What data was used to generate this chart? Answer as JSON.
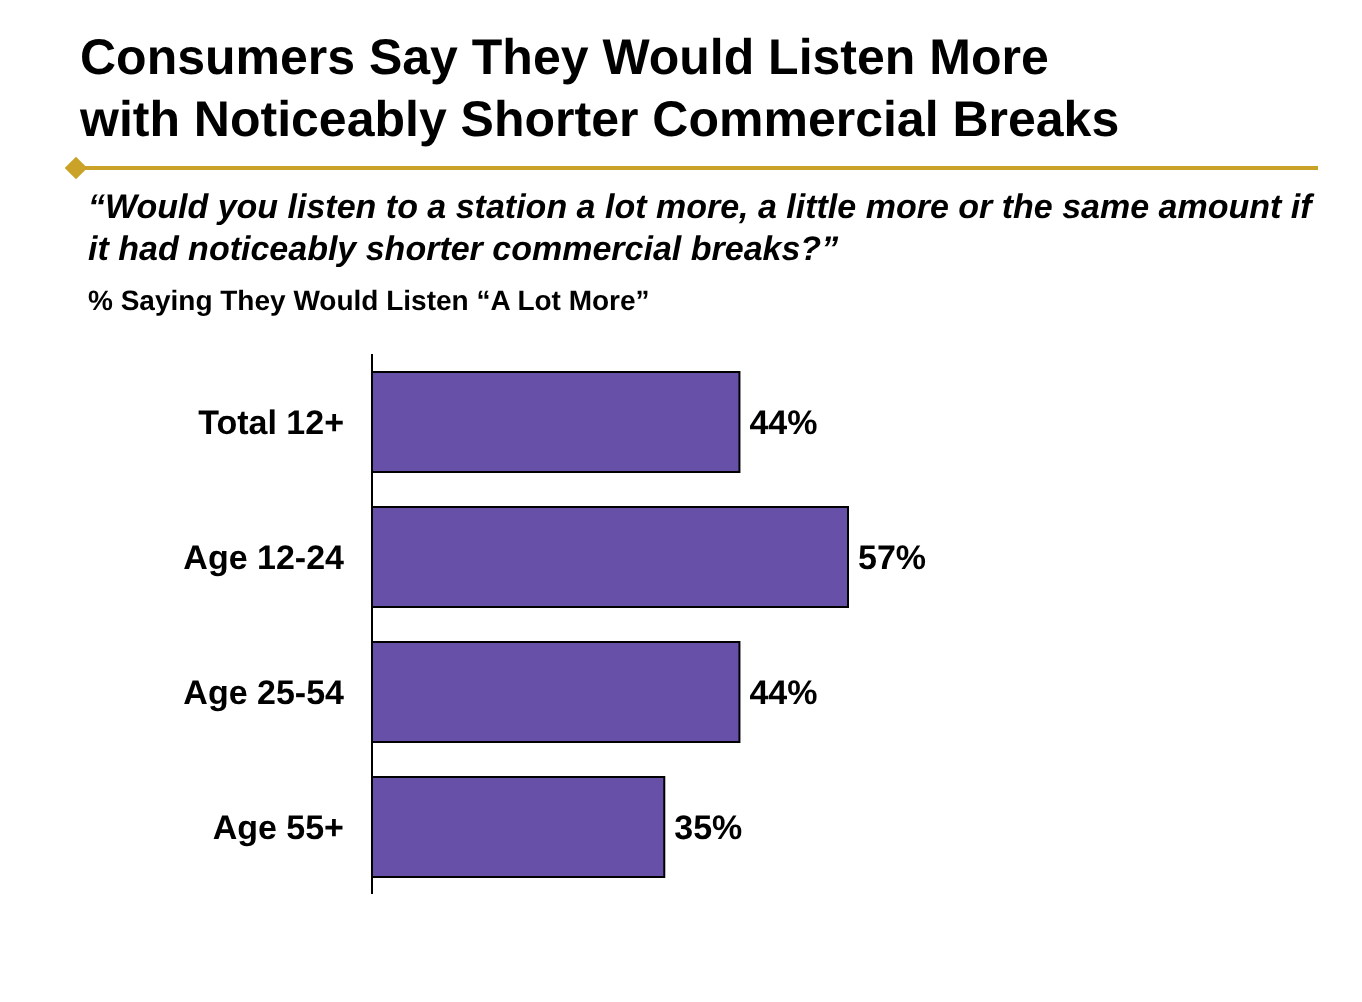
{
  "chart_data": {
    "type": "bar",
    "orientation": "horizontal",
    "title": "Consumers Say They Would Listen More with Noticeably Shorter Commercial Breaks",
    "subtitle": "“Would you listen to a station a lot more, a little more or the same amount if it had noticeably shorter commercial breaks?”",
    "xlabel": "% Saying They Would Listen “A Lot More”",
    "categories": [
      "Total 12+",
      "Age 12-24",
      "Age 25-54",
      "Age 55+"
    ],
    "values": [
      44,
      57,
      44,
      35
    ],
    "value_labels": [
      "44%",
      "57%",
      "44%",
      "35%"
    ],
    "color": "#6650a8"
  }
}
